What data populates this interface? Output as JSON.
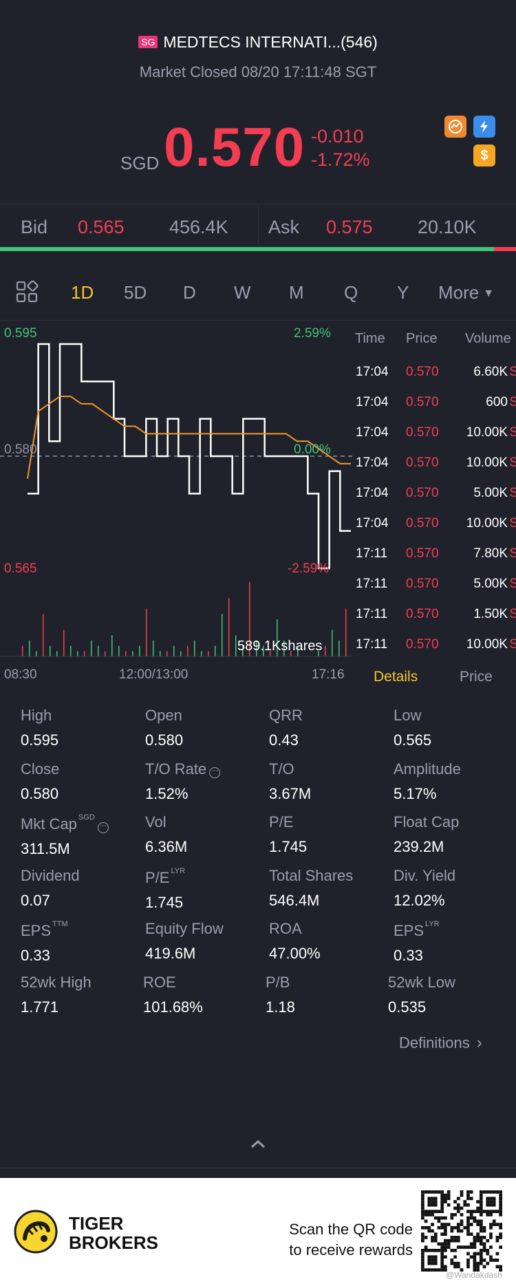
{
  "header": {
    "region_badge": "SG",
    "title": "MEDTECS INTERNATI...(546)",
    "status": "Market Closed 08/20 17:11:48 SGT"
  },
  "quote": {
    "currency": "SGD",
    "price": "0.570",
    "change": "-0.010",
    "change_pct": "-1.72%",
    "icons": [
      "briefcase-icon",
      "flash-icon",
      "dollar-icon"
    ]
  },
  "order_book": {
    "bid_label": "Bid",
    "bid_price": "0.565",
    "bid_size": "456.4K",
    "ask_label": "Ask",
    "ask_price": "0.575",
    "ask_size": "20.10K",
    "bid_ratio": 0.957
  },
  "period_tabs": {
    "items": [
      "1D",
      "5D",
      "D",
      "W",
      "M",
      "Q",
      "Y",
      "More"
    ],
    "active": "1D"
  },
  "chart": {
    "high_label": "0.595",
    "high_pct": "2.59%",
    "ref_label": "0.580",
    "ref_pct": "0.00%",
    "low_label": "0.565",
    "low_pct": "-2.59%",
    "volume_label": "589.1Kshares",
    "time_start": "08:30",
    "time_mid": "12:00/13:00",
    "time_end": "17:16"
  },
  "chart_data": {
    "type": "line",
    "series": [
      {
        "values": [
          0.575,
          0.595,
          0.582,
          0.595,
          0.595,
          0.59,
          0.59,
          0.59,
          0.585,
          0.58,
          0.58,
          0.585,
          0.58,
          0.585,
          0.58,
          0.575,
          0.585,
          0.58,
          0.58,
          0.575,
          0.585,
          0.585,
          0.58,
          0.58,
          0.58,
          0.58,
          0.575,
          0.565,
          0.578,
          0.57,
          0.57
        ]
      },
      {
        "values": [
          0.577,
          0.586,
          0.587,
          0.588,
          0.588,
          0.587,
          0.587,
          0.586,
          0.585,
          0.584,
          0.584,
          0.583,
          0.583,
          0.583,
          0.583,
          0.583,
          0.583,
          0.583,
          0.583,
          0.583,
          0.583,
          0.583,
          0.583,
          0.583,
          0.583,
          0.582,
          0.582,
          0.581,
          0.58,
          0.579,
          0.579
        ]
      }
    ],
    "ylim": [
      0.565,
      0.595
    ],
    "reference": 0.58
  },
  "trades": {
    "headers": [
      "Time",
      "Price",
      "Volume"
    ],
    "rows": [
      {
        "time": "17:04",
        "price": "0.570",
        "volume": "6.60K",
        "side": "S"
      },
      {
        "time": "17:04",
        "price": "0.570",
        "volume": "600",
        "side": "S"
      },
      {
        "time": "17:04",
        "price": "0.570",
        "volume": "10.00K",
        "side": "S"
      },
      {
        "time": "17:04",
        "price": "0.570",
        "volume": "10.00K",
        "side": "S"
      },
      {
        "time": "17:04",
        "price": "0.570",
        "volume": "5.00K",
        "side": "S"
      },
      {
        "time": "17:04",
        "price": "0.570",
        "volume": "10.00K",
        "side": "S"
      },
      {
        "time": "17:11",
        "price": "0.570",
        "volume": "7.80K",
        "side": "S"
      },
      {
        "time": "17:11",
        "price": "0.570",
        "volume": "5.00K",
        "side": "S"
      },
      {
        "time": "17:11",
        "price": "0.570",
        "volume": "1.50K",
        "side": "S"
      },
      {
        "time": "17:11",
        "price": "0.570",
        "volume": "10.00K",
        "side": "S"
      }
    ]
  },
  "detail_tabs": {
    "details": "Details",
    "price": "Price"
  },
  "stats": {
    "high": {
      "label": "High",
      "value": "0.595"
    },
    "open": {
      "label": "Open",
      "value": "0.580"
    },
    "qrr": {
      "label": "QRR",
      "value": "0.43"
    },
    "low": {
      "label": "Low",
      "value": "0.565"
    },
    "close": {
      "label": "Close",
      "value": "0.580"
    },
    "to_rate": {
      "label": "T/O Rate",
      "value": "1.52%"
    },
    "to": {
      "label": "T/O",
      "value": "3.67M"
    },
    "amplitude": {
      "label": "Amplitude",
      "value": "5.17%"
    },
    "mkt_cap": {
      "label": "Mkt Cap",
      "sup": "SGD",
      "value": "311.5M"
    },
    "vol": {
      "label": "Vol",
      "value": "6.36M"
    },
    "pe": {
      "label": "P/E",
      "value": "1.745"
    },
    "float_cap": {
      "label": "Float Cap",
      "value": "239.2M"
    },
    "dividend": {
      "label": "Dividend",
      "value": "0.07"
    },
    "pe_lyr": {
      "label": "P/E",
      "sup": "LYR",
      "value": "1.745"
    },
    "total_shares": {
      "label": "Total Shares",
      "value": "546.4M"
    },
    "div_yield": {
      "label": "Div. Yield",
      "value": "12.02%"
    },
    "eps_ttm": {
      "label": "EPS",
      "sup": "TTM",
      "value": "0.33"
    },
    "equity_flow": {
      "label": "Equity Flow",
      "value": "419.6M"
    },
    "roa": {
      "label": "ROA",
      "value": "47.00%"
    },
    "eps_lyr": {
      "label": "EPS",
      "sup": "LYR",
      "value": "0.33"
    },
    "wk52_high": {
      "label": "52wk High",
      "value": "1.771"
    },
    "roe": {
      "label": "ROE",
      "value": "101.68%"
    },
    "pb": {
      "label": "P/B",
      "value": "1.18"
    },
    "wk52_low": {
      "label": "52wk Low",
      "value": "0.535"
    }
  },
  "definitions_link": "Definitions",
  "footer": {
    "brand_line1": "TIGER",
    "brand_line2": "BROKERS",
    "cta_line1": "Scan the QR code",
    "cta_line2": "to receive rewards",
    "watermark": "@Wandakdash"
  }
}
